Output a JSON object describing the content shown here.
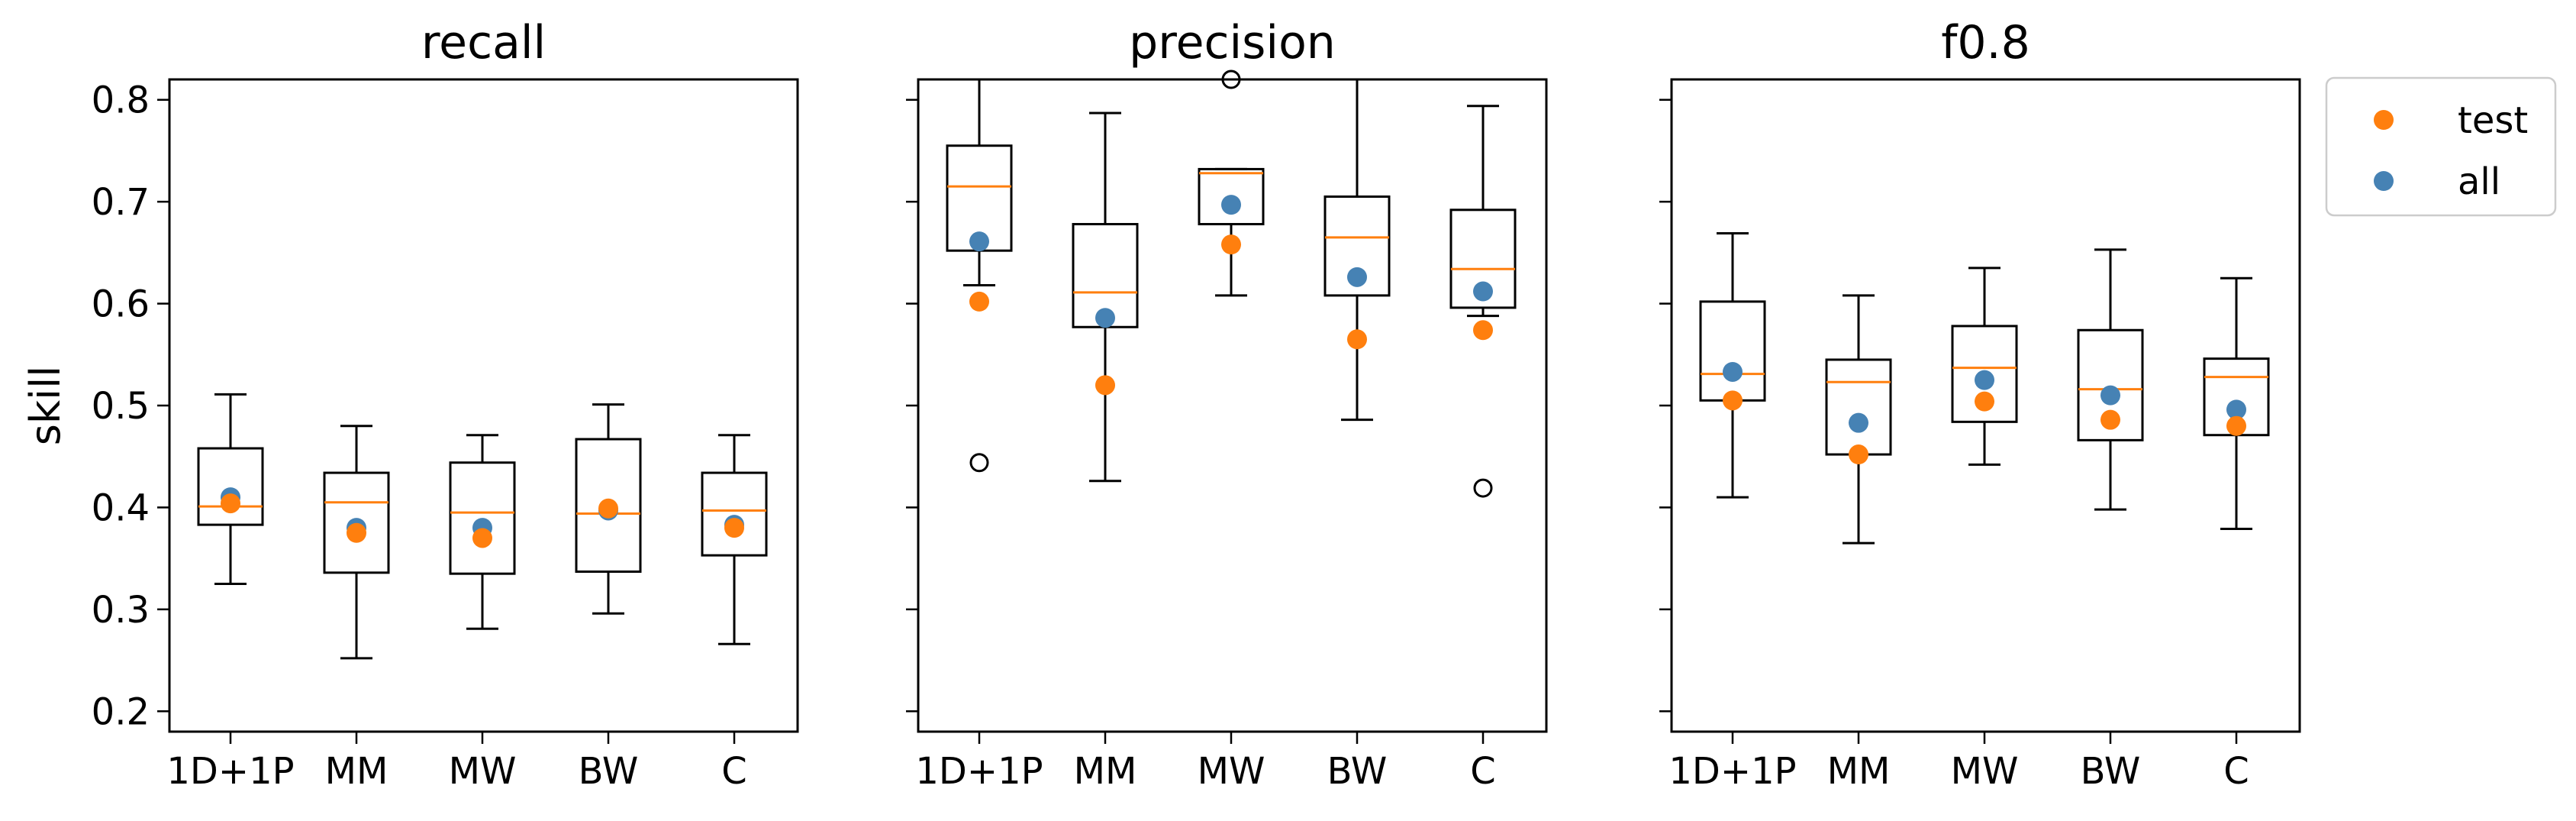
{
  "colors": {
    "test": "#ff7f0e",
    "all": "#4682b4",
    "median": "#ff7f0e",
    "box": "#000000"
  },
  "chart_data": {
    "type": "boxplot",
    "ylabel": "skill",
    "ylim": [
      0.18,
      0.82
    ],
    "yticks": [
      "0.2",
      "0.3",
      "0.4",
      "0.5",
      "0.6",
      "0.7",
      "0.8"
    ],
    "categories": [
      "1D+1P",
      "MM",
      "MW",
      "BW",
      "C"
    ],
    "legend": {
      "position": "right-outside",
      "entries": [
        {
          "key": "test",
          "label": "test"
        },
        {
          "key": "all",
          "label": "all"
        }
      ]
    },
    "panels": [
      {
        "title": "recall",
        "boxes": [
          {
            "whislo": 0.325,
            "q1": 0.383,
            "med": 0.401,
            "q3": 0.458,
            "whishi": 0.511,
            "fliers": []
          },
          {
            "whislo": 0.252,
            "q1": 0.336,
            "med": 0.405,
            "q3": 0.434,
            "whishi": 0.48,
            "fliers": []
          },
          {
            "whislo": 0.281,
            "q1": 0.335,
            "med": 0.395,
            "q3": 0.444,
            "whishi": 0.471,
            "fliers": []
          },
          {
            "whislo": 0.296,
            "q1": 0.337,
            "med": 0.394,
            "q3": 0.467,
            "whishi": 0.501,
            "fliers": []
          },
          {
            "whislo": 0.266,
            "q1": 0.353,
            "med": 0.397,
            "q3": 0.434,
            "whishi": 0.471,
            "fliers": []
          }
        ],
        "all": [
          0.41,
          0.38,
          0.38,
          0.397,
          0.383
        ],
        "test": [
          0.404,
          0.375,
          0.37,
          0.399,
          0.38
        ]
      },
      {
        "title": "precision",
        "boxes": [
          {
            "whislo": 0.618,
            "q1": 0.652,
            "med": 0.715,
            "q3": 0.755,
            "whishi": 0.82,
            "fliers": [
              0.444
            ]
          },
          {
            "whislo": 0.426,
            "q1": 0.577,
            "med": 0.611,
            "q3": 0.678,
            "whishi": 0.787,
            "fliers": []
          },
          {
            "whislo": 0.608,
            "q1": 0.678,
            "med": 0.728,
            "q3": 0.732,
            "whishi": 0.732,
            "fliers": [
              0.821
            ]
          },
          {
            "whislo": 0.486,
            "q1": 0.608,
            "med": 0.665,
            "q3": 0.705,
            "whishi": 0.82,
            "fliers": []
          },
          {
            "whislo": 0.588,
            "q1": 0.596,
            "med": 0.634,
            "q3": 0.692,
            "whishi": 0.794,
            "fliers": [
              0.419
            ]
          }
        ],
        "all": [
          0.661,
          0.586,
          0.697,
          0.626,
          0.612
        ],
        "test": [
          0.602,
          0.52,
          0.658,
          0.565,
          0.574
        ]
      },
      {
        "title": "f0.8",
        "boxes": [
          {
            "whislo": 0.41,
            "q1": 0.505,
            "med": 0.531,
            "q3": 0.602,
            "whishi": 0.669,
            "fliers": []
          },
          {
            "whislo": 0.365,
            "q1": 0.452,
            "med": 0.523,
            "q3": 0.545,
            "whishi": 0.608,
            "fliers": []
          },
          {
            "whislo": 0.442,
            "q1": 0.484,
            "med": 0.537,
            "q3": 0.578,
            "whishi": 0.635,
            "fliers": []
          },
          {
            "whislo": 0.398,
            "q1": 0.466,
            "med": 0.516,
            "q3": 0.574,
            "whishi": 0.653,
            "fliers": []
          },
          {
            "whislo": 0.379,
            "q1": 0.471,
            "med": 0.528,
            "q3": 0.546,
            "whishi": 0.625,
            "fliers": []
          }
        ],
        "all": [
          0.533,
          0.483,
          0.525,
          0.51,
          0.496
        ],
        "test": [
          0.505,
          0.452,
          0.504,
          0.486,
          0.48
        ]
      }
    ]
  }
}
